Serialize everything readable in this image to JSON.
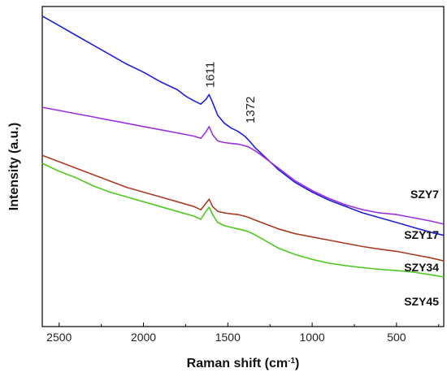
{
  "chart_data": {
    "type": "line",
    "title": "",
    "xlabel_main": "Raman shift (cm",
    "xlabel_sup": "-1",
    "xlabel_close": ")",
    "ylabel": "Intensity (a.u.)",
    "xlim": [
      2600,
      220
    ],
    "ylim": [
      0,
      100
    ],
    "x_reversed": true,
    "y_ticks_shown": false,
    "grid": false,
    "x_ticks": [
      2500,
      2000,
      1500,
      1000,
      500
    ],
    "x_tick_labels": [
      "2500",
      "2000",
      "1500",
      "1000",
      "500"
    ],
    "annotations": [
      {
        "text": "1611",
        "x": 1611
      },
      {
        "text": "1372",
        "x": 1372
      }
    ],
    "series": [
      {
        "name": "SZY7",
        "color": "#1f1fd6",
        "x": [
          2600,
          2500,
          2400,
          2300,
          2200,
          2100,
          2000,
          1900,
          1800,
          1750,
          1700,
          1660,
          1630,
          1611,
          1590,
          1560,
          1520,
          1480,
          1440,
          1400,
          1372,
          1340,
          1300,
          1250,
          1200,
          1100,
          1000,
          900,
          800,
          700,
          600,
          500,
          400,
          300,
          220
        ],
        "y": [
          97,
          94,
          91,
          88,
          85,
          82,
          79.5,
          76.5,
          74,
          72,
          70.5,
          69.5,
          71,
          72.5,
          70,
          66,
          63.5,
          62,
          61,
          59.5,
          58,
          56,
          54,
          51.5,
          49,
          45,
          42,
          39.5,
          37.5,
          35.5,
          34,
          32.5,
          31,
          29.5,
          28.5
        ]
      },
      {
        "name": "SZY17",
        "color": "#9b30e0",
        "x": [
          2600,
          2500,
          2400,
          2300,
          2200,
          2100,
          2000,
          1900,
          1800,
          1700,
          1660,
          1630,
          1611,
          1590,
          1560,
          1520,
          1480,
          1440,
          1400,
          1372,
          1340,
          1300,
          1250,
          1200,
          1100,
          1000,
          900,
          800,
          700,
          600,
          500,
          400,
          300,
          220
        ],
        "y": [
          68.5,
          67.5,
          66.5,
          65.5,
          64.5,
          63.5,
          62.5,
          61.5,
          60.5,
          59.5,
          58.8,
          60.8,
          62.5,
          60,
          58,
          57.5,
          57.2,
          57,
          56.5,
          56,
          55,
          53.5,
          51.5,
          49.5,
          45.5,
          42.5,
          40,
          38,
          36.5,
          35.5,
          35,
          34,
          33,
          32
        ]
      },
      {
        "name": "SZY34",
        "color": "#a83b22",
        "x": [
          2600,
          2500,
          2400,
          2300,
          2200,
          2100,
          2000,
          1900,
          1800,
          1700,
          1660,
          1630,
          1611,
          1590,
          1560,
          1520,
          1480,
          1440,
          1400,
          1372,
          1340,
          1300,
          1250,
          1200,
          1100,
          1000,
          900,
          800,
          700,
          600,
          500,
          400,
          300,
          220
        ],
        "y": [
          53.5,
          51.5,
          49.5,
          47.5,
          45.5,
          43.5,
          42,
          40.5,
          39,
          37.5,
          36.5,
          38.5,
          39.8,
          37.5,
          36,
          35.5,
          35.2,
          35,
          34.5,
          34,
          33.3,
          32.5,
          31.5,
          30.5,
          29,
          28,
          27,
          26,
          25,
          24.2,
          23.5,
          22.5,
          21.5,
          20.5
        ]
      },
      {
        "name": "SZY45",
        "color": "#4fc81f",
        "x": [
          2600,
          2500,
          2400,
          2300,
          2200,
          2100,
          2000,
          1900,
          1800,
          1700,
          1660,
          1630,
          1611,
          1590,
          1560,
          1520,
          1480,
          1440,
          1400,
          1372,
          1340,
          1300,
          1250,
          1200,
          1100,
          1000,
          900,
          800,
          700,
          600,
          500,
          400,
          300,
          220
        ],
        "y": [
          51,
          48.5,
          46.5,
          44,
          42,
          40.5,
          39,
          37.5,
          36,
          34.5,
          33.5,
          36,
          37.3,
          35,
          32.5,
          31.5,
          31,
          30.5,
          30,
          29.5,
          28.7,
          27.5,
          26,
          24.5,
          22.5,
          21,
          19.8,
          19,
          18.4,
          17.9,
          17.5,
          17,
          16.2,
          15.5
        ]
      }
    ],
    "series_labels": [
      {
        "text": "SZY7"
      },
      {
        "text": "SZY17"
      },
      {
        "text": "SZY34"
      },
      {
        "text": "SZY45"
      }
    ]
  }
}
